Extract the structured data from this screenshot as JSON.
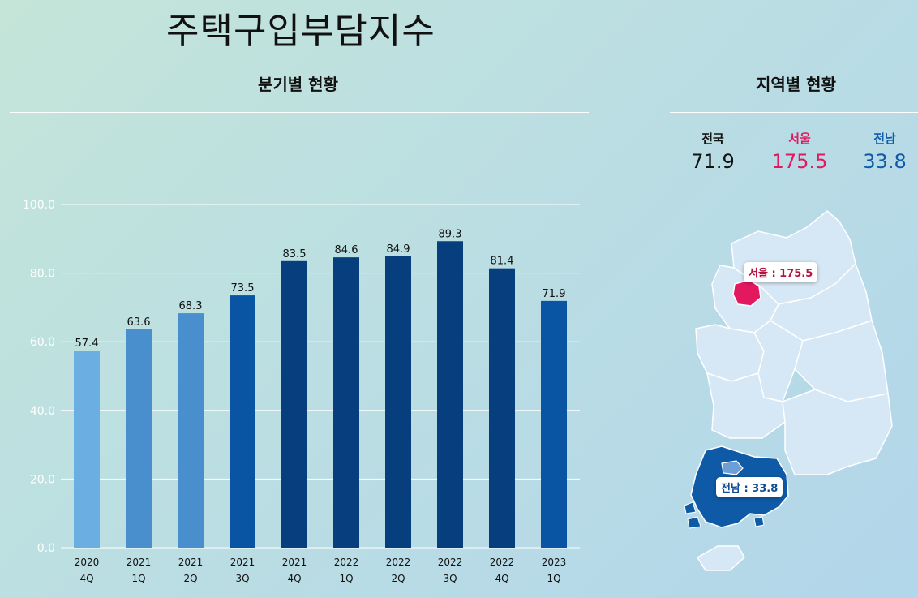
{
  "page": {
    "title": "주택구입부담지수",
    "quarterly_title": "분기별 현황",
    "regional_title": "지역별 현황"
  },
  "regional": {
    "nation": {
      "label": "전국",
      "value": "71.9"
    },
    "seoul": {
      "label": "서울",
      "value": "175.5",
      "map_label": "서울 : 175.5"
    },
    "jeonnam": {
      "label": "전남",
      "value": "33.8",
      "map_label": "전남 : 33.8"
    }
  },
  "colors": {
    "seoul": "#e2195f",
    "jeonnam": "#0e5aa7",
    "map_base": "#d6e7f5"
  },
  "chart_data": {
    "type": "bar",
    "title": "",
    "xlabel": "",
    "ylabel": "",
    "ylim": [
      0,
      100
    ],
    "yticks": [
      "0.0",
      "20.0",
      "40.0",
      "60.0",
      "80.0",
      "100.0"
    ],
    "grid": true,
    "categories": [
      [
        "2020",
        "4Q"
      ],
      [
        "2021",
        "1Q"
      ],
      [
        "2021",
        "2Q"
      ],
      [
        "2021",
        "3Q"
      ],
      [
        "2021",
        "4Q"
      ],
      [
        "2022",
        "1Q"
      ],
      [
        "2022",
        "2Q"
      ],
      [
        "2022",
        "3Q"
      ],
      [
        "2022",
        "4Q"
      ],
      [
        "2023",
        "1Q"
      ]
    ],
    "values": [
      57.4,
      63.6,
      68.3,
      73.5,
      83.5,
      84.6,
      84.9,
      89.3,
      81.4,
      71.9
    ],
    "value_labels": [
      "57.4",
      "63.6",
      "68.3",
      "73.5",
      "83.5",
      "84.6",
      "84.9",
      "89.3",
      "81.4",
      "71.9"
    ],
    "bar_colors": [
      "#6aaee2",
      "#4a8fcd",
      "#4a8fcd",
      "#0a55a3",
      "#073f7e",
      "#073f7e",
      "#073f7e",
      "#073f7e",
      "#073f7e",
      "#0a55a3"
    ]
  }
}
